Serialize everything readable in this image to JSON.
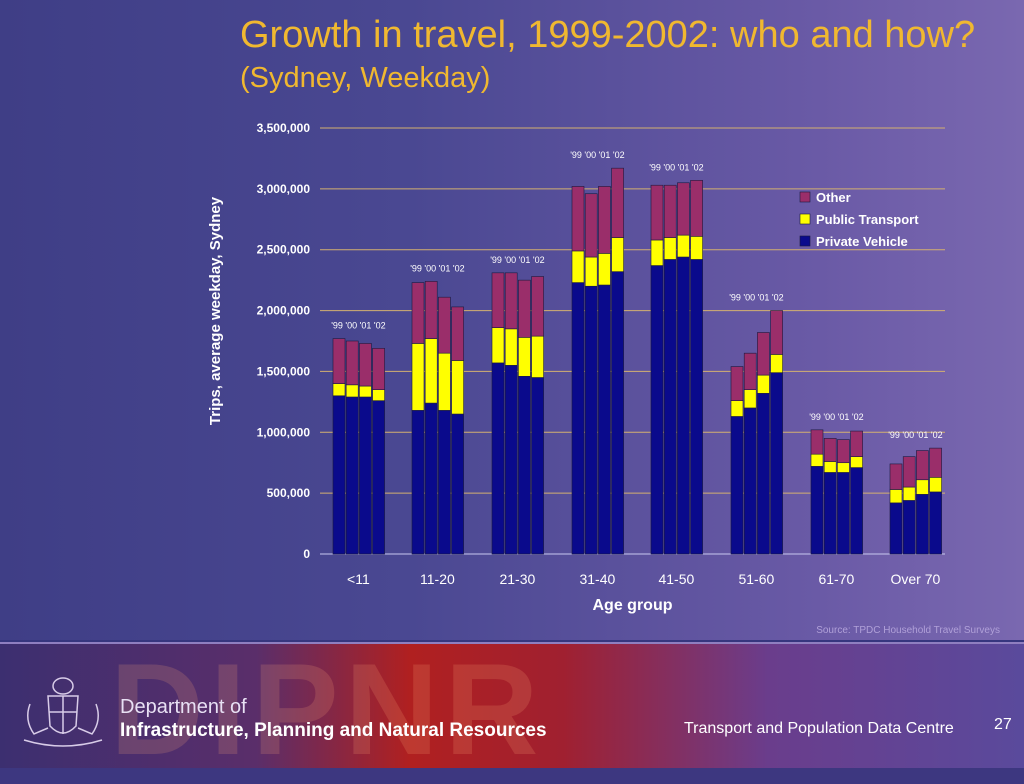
{
  "slide": {
    "title": "Growth in travel, 1999-2002: who and how?",
    "subtitle": "(Sydney, Weekday)",
    "source": "Source: TPDC Household Travel Surveys",
    "footer": {
      "dept_line1": "Department of",
      "dept_line2": "Infrastructure, Planning and Natural Resources",
      "centre": "Transport and Population Data Centre",
      "page_number": "27",
      "watermark": "DIPNR"
    }
  },
  "chart_data": {
    "type": "bar",
    "stacked": true,
    "xlabel": "Age group",
    "ylabel": "Trips, average weekday, Sydney",
    "ylim": [
      0,
      3500000
    ],
    "yticks": [
      0,
      500000,
      1000000,
      1500000,
      2000000,
      2500000,
      3000000,
      3500000
    ],
    "ytick_labels": [
      "0",
      "500,000",
      "1,000,000",
      "1,500,000",
      "2,000,000",
      "2,500,000",
      "3,000,000",
      "3,500,000"
    ],
    "grid": true,
    "legend_position": "top-right",
    "year_labels": [
      "'99",
      "'00",
      "'01",
      "'02"
    ],
    "categories": [
      "<11",
      "11-20",
      "21-30",
      "31-40",
      "41-50",
      "51-60",
      "61-70",
      "Over 70"
    ],
    "series": [
      {
        "name": "Private Vehicle",
        "color": "#0a0a8c",
        "values": [
          [
            1300000,
            1290000,
            1290000,
            1260000
          ],
          [
            1180000,
            1240000,
            1180000,
            1150000
          ],
          [
            1570000,
            1550000,
            1460000,
            1450000
          ],
          [
            2230000,
            2200000,
            2210000,
            2320000
          ],
          [
            2370000,
            2420000,
            2440000,
            2420000
          ],
          [
            1130000,
            1200000,
            1320000,
            1490000
          ],
          [
            720000,
            670000,
            670000,
            710000
          ],
          [
            420000,
            440000,
            490000,
            510000
          ]
        ]
      },
      {
        "name": "Public Transport",
        "color": "#ffff00",
        "values": [
          [
            100000,
            100000,
            90000,
            90000
          ],
          [
            550000,
            530000,
            470000,
            440000
          ],
          [
            290000,
            300000,
            320000,
            340000
          ],
          [
            260000,
            240000,
            260000,
            280000
          ],
          [
            210000,
            180000,
            180000,
            190000
          ],
          [
            130000,
            150000,
            150000,
            150000
          ],
          [
            100000,
            90000,
            80000,
            90000
          ],
          [
            110000,
            110000,
            120000,
            120000
          ]
        ]
      },
      {
        "name": "Other",
        "color": "#9a2e6a",
        "values": [
          [
            370000,
            360000,
            350000,
            340000
          ],
          [
            500000,
            470000,
            460000,
            440000
          ],
          [
            450000,
            460000,
            470000,
            490000
          ],
          [
            530000,
            520000,
            550000,
            570000
          ],
          [
            450000,
            430000,
            430000,
            460000
          ],
          [
            280000,
            300000,
            350000,
            360000
          ],
          [
            200000,
            190000,
            190000,
            210000
          ],
          [
            210000,
            250000,
            240000,
            240000
          ]
        ]
      }
    ]
  }
}
